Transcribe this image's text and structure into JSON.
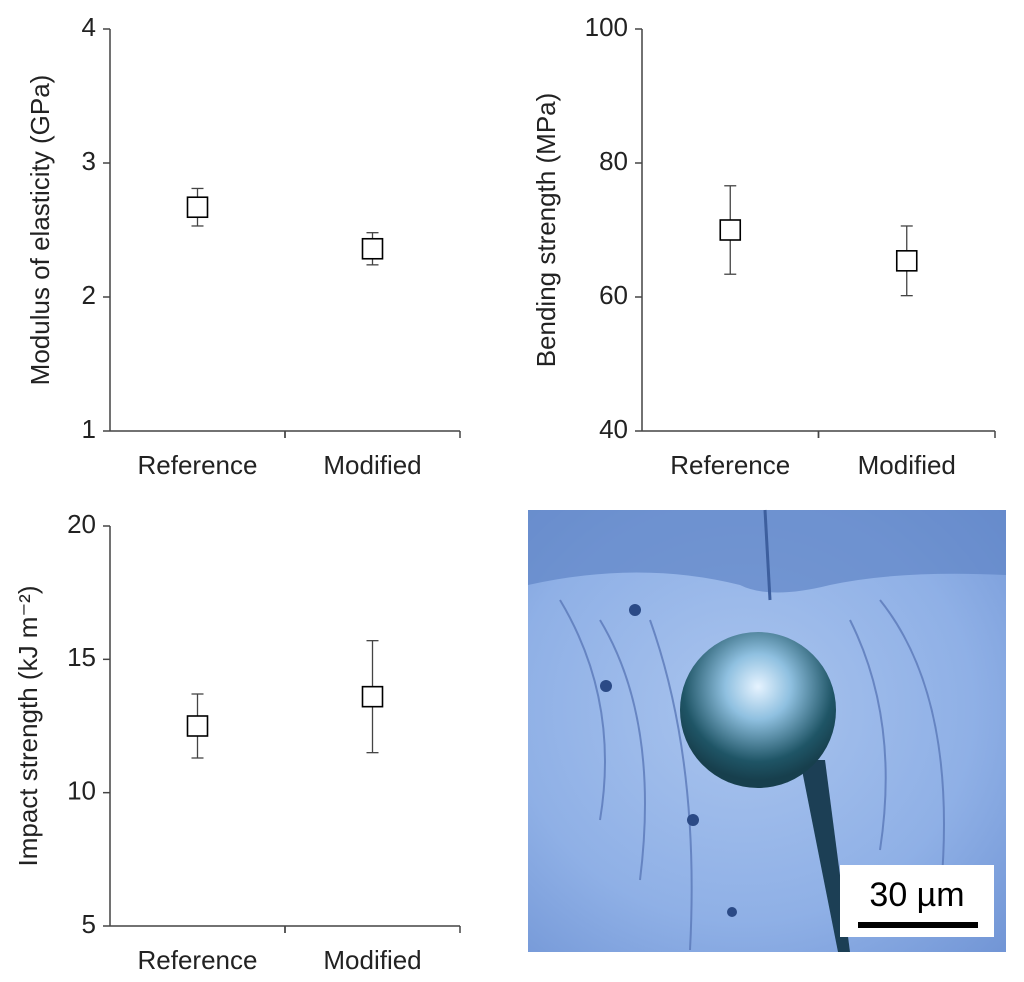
{
  "chart_data": [
    {
      "type": "errorbar",
      "y_label": "Modulus of elasticity (GPa)",
      "categories": [
        "Reference",
        "Modified"
      ],
      "values": [
        2.67,
        2.36
      ],
      "errors": [
        0.14,
        0.12
      ],
      "ylim": [
        1,
        4
      ],
      "yticks": [
        1,
        2,
        3,
        4
      ],
      "color": "#000000"
    },
    {
      "type": "errorbar",
      "y_label": "Bending strength (MPa)",
      "categories": [
        "Reference",
        "Modified"
      ],
      "values": [
        70,
        65.4
      ],
      "errors": [
        6.6,
        5.2
      ],
      "ylim": [
        40,
        100
      ],
      "yticks": [
        40,
        60,
        80,
        100
      ],
      "color": "#000000"
    },
    {
      "type": "errorbar",
      "y_label": "Impact strength (kJ m⁻²)",
      "categories": [
        "Reference",
        "Modified"
      ],
      "values": [
        12.5,
        13.6
      ],
      "errors": [
        1.2,
        2.1
      ],
      "ylim": [
        5,
        20
      ],
      "yticks": [
        5,
        10,
        15,
        20
      ],
      "color": "#000000"
    }
  ],
  "image": {
    "scale_label": "30 µm"
  }
}
